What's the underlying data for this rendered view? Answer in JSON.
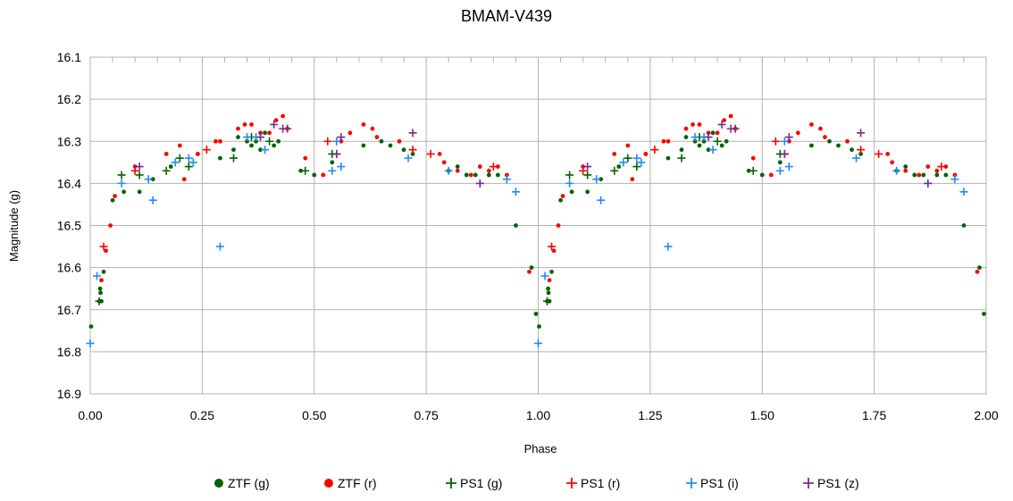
{
  "chart_data": {
    "type": "scatter",
    "title": "BMAM-V439",
    "xlabel": "Phase",
    "ylabel": "Magnitude (g)",
    "xlim": [
      0,
      2
    ],
    "ylim": [
      16.1,
      16.9
    ],
    "y_inverted": true,
    "grid": true,
    "legend_position": "bottom",
    "x_ticks": [
      "0.00",
      "0.25",
      "0.50",
      "0.75",
      "1.00",
      "1.25",
      "1.50",
      "1.75",
      "2.00"
    ],
    "y_ticks": [
      "16.1",
      "16.2",
      "16.3",
      "16.4",
      "16.5",
      "16.6",
      "16.7",
      "16.8",
      "16.9"
    ],
    "series": [
      {
        "name": "ZTF (g)",
        "marker": "dot",
        "color": "#006400",
        "points": [
          [
            0.002,
            16.74
          ],
          [
            0.02,
            16.68
          ],
          [
            0.022,
            16.65
          ],
          [
            0.023,
            16.66
          ],
          [
            0.025,
            16.68
          ],
          [
            0.03,
            16.61
          ],
          [
            0.05,
            16.44
          ],
          [
            0.075,
            16.42
          ],
          [
            0.11,
            16.42
          ],
          [
            0.14,
            16.39
          ],
          [
            0.18,
            16.36
          ],
          [
            0.24,
            16.33
          ],
          [
            0.29,
            16.34
          ],
          [
            0.32,
            16.32
          ],
          [
            0.33,
            16.29
          ],
          [
            0.35,
            16.3
          ],
          [
            0.36,
            16.31
          ],
          [
            0.37,
            16.3
          ],
          [
            0.38,
            16.32
          ],
          [
            0.39,
            16.28
          ],
          [
            0.41,
            16.31
          ],
          [
            0.42,
            16.3
          ],
          [
            0.47,
            16.37
          ],
          [
            0.5,
            16.38
          ],
          [
            0.54,
            16.35
          ],
          [
            0.61,
            16.31
          ],
          [
            0.65,
            16.3
          ],
          [
            0.67,
            16.31
          ],
          [
            0.7,
            16.32
          ],
          [
            0.72,
            16.33
          ],
          [
            0.8,
            16.37
          ],
          [
            0.82,
            16.36
          ],
          [
            0.84,
            16.38
          ],
          [
            0.86,
            16.38
          ],
          [
            0.89,
            16.38
          ],
          [
            0.91,
            16.38
          ],
          [
            0.95,
            16.5
          ],
          [
            0.985,
            16.6
          ],
          [
            0.995,
            16.71
          ]
        ]
      },
      {
        "name": "ZTF (r)",
        "marker": "dot",
        "color": "#ff0000",
        "points": [
          [
            0.025,
            16.63
          ],
          [
            0.035,
            16.56
          ],
          [
            0.045,
            16.5
          ],
          [
            0.055,
            16.43
          ],
          [
            0.1,
            16.36
          ],
          [
            0.17,
            16.33
          ],
          [
            0.2,
            16.31
          ],
          [
            0.21,
            16.39
          ],
          [
            0.24,
            16.33
          ],
          [
            0.28,
            16.3
          ],
          [
            0.29,
            16.3
          ],
          [
            0.33,
            16.27
          ],
          [
            0.345,
            16.26
          ],
          [
            0.36,
            16.26
          ],
          [
            0.38,
            16.28
          ],
          [
            0.4,
            16.28
          ],
          [
            0.415,
            16.25
          ],
          [
            0.43,
            16.24
          ],
          [
            0.44,
            16.27
          ],
          [
            0.48,
            16.34
          ],
          [
            0.52,
            16.38
          ],
          [
            0.56,
            16.3
          ],
          [
            0.58,
            16.28
          ],
          [
            0.61,
            16.26
          ],
          [
            0.63,
            16.27
          ],
          [
            0.64,
            16.29
          ],
          [
            0.69,
            16.3
          ],
          [
            0.78,
            16.33
          ],
          [
            0.79,
            16.35
          ],
          [
            0.82,
            16.37
          ],
          [
            0.85,
            16.38
          ],
          [
            0.87,
            16.36
          ],
          [
            0.89,
            16.37
          ],
          [
            0.91,
            16.36
          ],
          [
            0.93,
            16.38
          ],
          [
            0.98,
            16.61
          ]
        ]
      },
      {
        "name": "PS1 (g)",
        "marker": "plus",
        "color": "#006400",
        "points": [
          [
            0.02,
            16.68
          ],
          [
            0.07,
            16.38
          ],
          [
            0.11,
            16.38
          ],
          [
            0.17,
            16.37
          ],
          [
            0.2,
            16.34
          ],
          [
            0.22,
            16.36
          ],
          [
            0.32,
            16.34
          ],
          [
            0.36,
            16.29
          ],
          [
            0.4,
            16.3
          ],
          [
            0.48,
            16.37
          ],
          [
            0.54,
            16.33
          ],
          [
            0.55,
            16.33
          ]
        ]
      },
      {
        "name": "PS1 (r)",
        "marker": "plus",
        "color": "#ff0000",
        "points": [
          [
            0.03,
            16.55
          ],
          [
            0.1,
            16.37
          ],
          [
            0.26,
            16.32
          ],
          [
            0.53,
            16.3
          ],
          [
            0.72,
            16.32
          ],
          [
            0.76,
            16.33
          ],
          [
            0.9,
            16.36
          ]
        ]
      },
      {
        "name": "PS1 (i)",
        "marker": "plus",
        "color": "#1e8cff",
        "points": [
          [
            0.0,
            16.78
          ],
          [
            0.015,
            16.62
          ],
          [
            0.07,
            16.4
          ],
          [
            0.13,
            16.39
          ],
          [
            0.14,
            16.44
          ],
          [
            0.19,
            16.35
          ],
          [
            0.22,
            16.34
          ],
          [
            0.23,
            16.35
          ],
          [
            0.29,
            16.55
          ],
          [
            0.35,
            16.29
          ],
          [
            0.37,
            16.29
          ],
          [
            0.39,
            16.32
          ],
          [
            0.54,
            16.37
          ],
          [
            0.55,
            16.3
          ],
          [
            0.56,
            16.36
          ],
          [
            0.71,
            16.34
          ],
          [
            0.8,
            16.37
          ],
          [
            0.87,
            16.4
          ],
          [
            0.93,
            16.39
          ],
          [
            0.95,
            16.42
          ]
        ]
      },
      {
        "name": "PS1 (z)",
        "marker": "plus",
        "color": "#7b2a8c",
        "points": [
          [
            0.11,
            16.36
          ],
          [
            0.38,
            16.29
          ],
          [
            0.41,
            16.26
          ],
          [
            0.43,
            16.27
          ],
          [
            0.44,
            16.27
          ],
          [
            0.55,
            16.33
          ],
          [
            0.56,
            16.29
          ],
          [
            0.72,
            16.28
          ],
          [
            0.87,
            16.4
          ]
        ]
      }
    ]
  }
}
